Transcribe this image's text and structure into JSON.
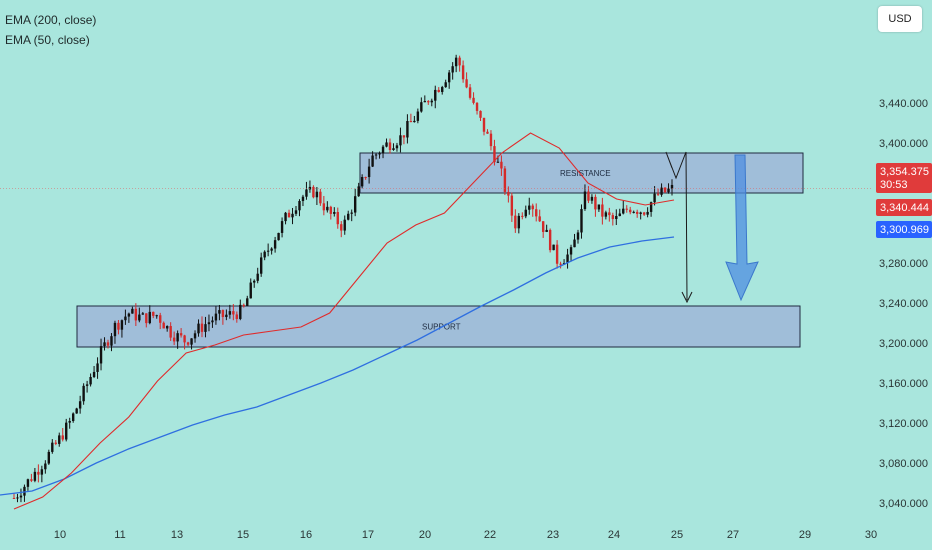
{
  "chart_data": {
    "type": "candlestick",
    "currency": "USD",
    "legend": [
      {
        "name": "EMA (200, close)",
        "color": "#2f6fe0"
      },
      {
        "name": "EMA (50, close)",
        "color": "#e02b2b"
      }
    ],
    "x_tick_labels": [
      "10",
      "11",
      "13",
      "15",
      "16",
      "17",
      "20",
      "22",
      "23",
      "24",
      "25",
      "27",
      "29",
      "30"
    ],
    "y_tick_labels": [
      "3,040.000",
      "3,080.000",
      "3,120.000",
      "3,160.000",
      "3,200.000",
      "3,240.000",
      "3,280.000",
      "3,400.000",
      "3,440.000"
    ],
    "ylim": [
      3030,
      3495
    ],
    "price_close": [
      3045,
      3062,
      3080,
      3100,
      3123,
      3155,
      3188,
      3216,
      3230,
      3225,
      3228,
      3210,
      3202,
      3215,
      3225,
      3228,
      3232,
      3272,
      3300,
      3325,
      3345,
      3352,
      3330,
      3316,
      3348,
      3385,
      3398,
      3405,
      3425,
      3445,
      3462,
      3485,
      3440,
      3410,
      3372,
      3318,
      3345,
      3316,
      3282,
      3290,
      3350,
      3330,
      3322,
      3336,
      3332,
      3348,
      3354
    ],
    "series": [
      {
        "name": "EMA (200, close)",
        "values": [
          3048,
          3052,
          3064,
          3080,
          3094,
          3106,
          3118,
          3128,
          3136,
          3148,
          3160,
          3173,
          3188,
          3203,
          3220,
          3237,
          3253,
          3270,
          3285,
          3296,
          3302,
          3306
        ]
      },
      {
        "name": "EMA (50, close)",
        "values": [
          3034,
          3046,
          3070,
          3100,
          3126,
          3162,
          3190,
          3198,
          3208,
          3212,
          3216,
          3230,
          3265,
          3300,
          3318,
          3330,
          3360,
          3390,
          3410,
          3395,
          3360,
          3344,
          3338,
          3343
        ]
      }
    ],
    "zones": [
      {
        "label": "RESISTANCE",
        "y_top": 3390,
        "y_bottom": 3350
      },
      {
        "label": "SUPPORT",
        "y_top": 3237,
        "y_bottom": 3196
      }
    ],
    "price_tags": [
      {
        "text": "3,354.375",
        "sub": "30:53",
        "value": 3354.375,
        "color": "#e03b3b"
      },
      {
        "text": "3,340.444",
        "value": 3340.444,
        "color": "#e03b3b"
      },
      {
        "text": "3,300.969",
        "value": 3300.969,
        "color": "#2962ff"
      }
    ]
  }
}
